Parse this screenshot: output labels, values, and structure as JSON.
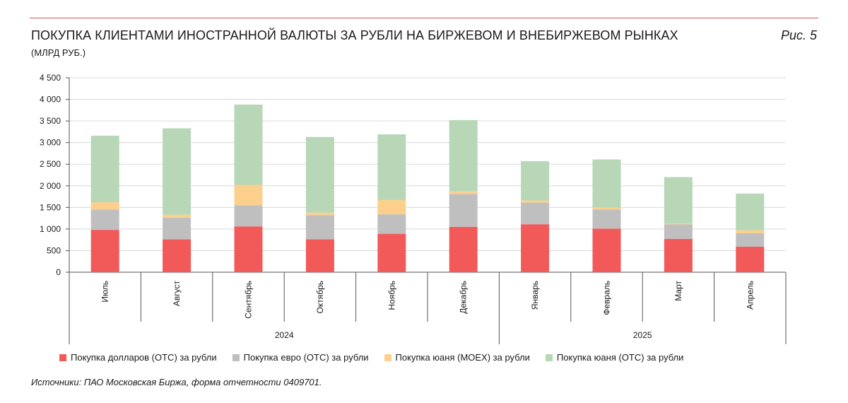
{
  "header": {
    "title": "ПОКУПКА КЛИЕНТАМИ ИНОСТРАННОЙ ВАЛЮТЫ ЗА РУБЛИ НА БИРЖЕВОМ И ВНЕБИРЖЕВОМ РЫНКАХ",
    "subtitle": "(МЛРД РУБ.)",
    "figure_label": "Рис. 5",
    "accent_line_color": "#d9534f"
  },
  "footer": {
    "source": "Источники: ПАО Московская Биржа, форма отчетности 0409701."
  },
  "chart_data": {
    "type": "bar",
    "stacked": true,
    "categories": [
      "Июль",
      "Август",
      "Сентябрь",
      "Октябрь",
      "Ноябрь",
      "Декабрь",
      "Январь",
      "Февраль",
      "Март",
      "Апрель"
    ],
    "groups": [
      {
        "label": "2024",
        "categories": [
          "Июль",
          "Август",
          "Сентябрь",
          "Октябрь",
          "Ноябрь",
          "Декабрь"
        ]
      },
      {
        "label": "2025",
        "categories": [
          "Январь",
          "Февраль",
          "Март",
          "Апрель"
        ]
      }
    ],
    "series": [
      {
        "name": "Покупка долларов (ОТС) за рубли",
        "color": "#f25a5a",
        "values": [
          980,
          760,
          1060,
          760,
          890,
          1050,
          1110,
          1010,
          770,
          590
        ]
      },
      {
        "name": "Покупка евро (ОТС) за рубли",
        "color": "#bfbfbf",
        "values": [
          470,
          500,
          490,
          560,
          450,
          760,
          500,
          440,
          340,
          310
        ]
      },
      {
        "name": "Покупка юаня (MOEX) за рубли",
        "color": "#fcd08c",
        "values": [
          170,
          70,
          470,
          60,
          330,
          60,
          50,
          50,
          20,
          70
        ]
      },
      {
        "name": "Покупка юаня (ОТС) за рубли",
        "color": "#b7d7b7",
        "values": [
          1540,
          2000,
          1860,
          1750,
          1520,
          1650,
          910,
          1110,
          1070,
          850
        ]
      }
    ],
    "ylim": [
      0,
      4500
    ],
    "yticks": [
      0,
      500,
      1000,
      1500,
      2000,
      2500,
      3000,
      3500,
      4000,
      4500
    ],
    "ytick_labels": [
      "0",
      "500",
      "1 000",
      "1 500",
      "2 000",
      "2 500",
      "3 000",
      "3 500",
      "4 000",
      "4 500"
    ],
    "grid": true,
    "legend_position": "bottom"
  }
}
